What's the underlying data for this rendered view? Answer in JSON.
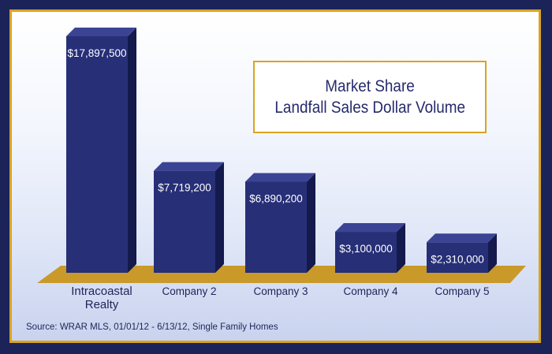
{
  "chart_data": {
    "type": "bar",
    "title": "Market Share",
    "subtitle": "Landfall Sales Dollar Volume",
    "categories": [
      "Intracoastal Realty",
      "Company 2",
      "Company 3",
      "Company 4",
      "Company 5"
    ],
    "values": [
      17897500,
      7719200,
      6890200,
      3100000,
      2310000
    ],
    "value_labels": [
      "$17,897,500",
      "$7,719,200",
      "$6,890,200",
      "$3,100,000",
      "$2,310,000"
    ],
    "category_lines": [
      [
        "Intracoastal",
        "Realty"
      ],
      [
        "Company 2"
      ],
      [
        "Company 3"
      ],
      [
        "Company 4"
      ],
      [
        "Company 5"
      ]
    ],
    "grid": false,
    "legend": "none",
    "colors": {
      "bar_front": "#272f77",
      "bar_side": "#141a4c",
      "bar_top": "#3b4494",
      "floor": "#c99a2a",
      "accent": "#d9a421",
      "background": "#1b2358"
    }
  },
  "source": "Source: WRAR MLS, 01/01/12 - 6/13/12, Single Family Homes"
}
